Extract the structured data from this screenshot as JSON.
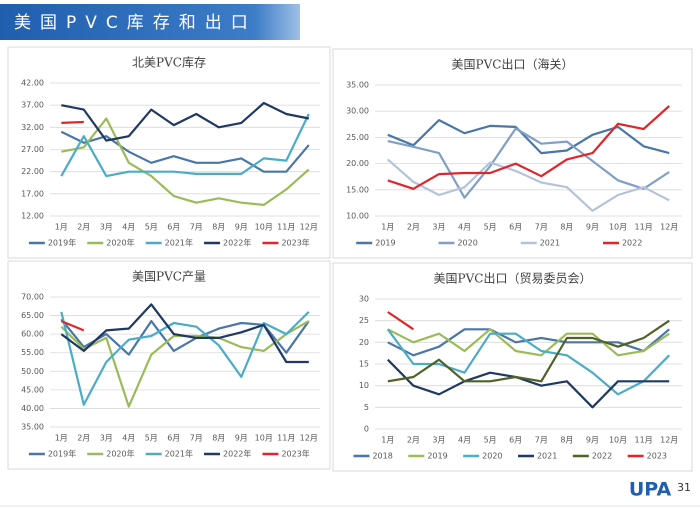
{
  "header": {
    "title": "美国PVC库存和出口"
  },
  "page_number": "31",
  "logo_text": "UPA",
  "chart_data": [
    {
      "type": "line",
      "title": "北美PVC库存",
      "categories": [
        "1月",
        "2月",
        "3月",
        "4月",
        "5月",
        "6月",
        "7月",
        "8月",
        "9月",
        "10月",
        "11月",
        "12月"
      ],
      "ylim": [
        12,
        42
      ],
      "yticks": [
        {
          "value": 12,
          "label": "12.00"
        },
        {
          "value": 17,
          "label": "17.00"
        },
        {
          "value": 22,
          "label": "22.00"
        },
        {
          "value": 27,
          "label": "27.00"
        },
        {
          "value": 32,
          "label": "32.00"
        },
        {
          "value": 37,
          "label": "37.00"
        },
        {
          "value": 42,
          "label": "42.00"
        }
      ],
      "grid": true,
      "series": [
        {
          "name": "2019年",
          "color": "#4a76a8",
          "values": [
            31,
            28.5,
            30,
            26.5,
            24,
            25.5,
            24,
            24,
            25,
            22,
            22,
            28
          ]
        },
        {
          "name": "2020年",
          "color": "#9bbb59",
          "values": [
            26.5,
            27.5,
            34,
            24,
            21,
            16.5,
            15,
            16,
            15,
            14.5,
            18,
            22.5
          ]
        },
        {
          "name": "2021年",
          "color": "#4bacc6",
          "values": [
            21,
            30,
            21,
            22,
            22,
            22,
            21.5,
            21.5,
            21.5,
            25,
            24.5,
            35
          ]
        },
        {
          "name": "2022年",
          "color": "#1f3864",
          "values": [
            37,
            36,
            29,
            30,
            36,
            32.5,
            35,
            32,
            33,
            37.5,
            35,
            34
          ]
        },
        {
          "name": "2023年",
          "color": "#e0262b",
          "values": [
            33,
            33.2,
            null,
            null,
            null,
            null,
            null,
            null,
            null,
            null,
            null,
            null
          ]
        }
      ]
    },
    {
      "type": "line",
      "title": "美国PVC出口（海关）",
      "categories": [
        "1月",
        "2月",
        "3月",
        "4月",
        "5月",
        "6月",
        "7月",
        "8月",
        "9月",
        "10月",
        "11月",
        "12月"
      ],
      "ylim": [
        10,
        35
      ],
      "yticks": [
        {
          "value": 10,
          "label": "10.00"
        },
        {
          "value": 15,
          "label": "15.00"
        },
        {
          "value": 20,
          "label": "20.00"
        },
        {
          "value": 25,
          "label": "25.00"
        },
        {
          "value": 30,
          "label": "30.00"
        },
        {
          "value": 35,
          "label": "35.00"
        }
      ],
      "grid": true,
      "series": [
        {
          "name": "2019",
          "color": "#4a76a8",
          "values": [
            25.5,
            23.5,
            28.3,
            25.8,
            27.2,
            27,
            22,
            22.5,
            25.5,
            27,
            23.3,
            22
          ]
        },
        {
          "name": "2020",
          "color": "#7f9fc6",
          "values": [
            24.3,
            23.2,
            22,
            13.5,
            19.5,
            26.7,
            23.8,
            24.2,
            20.5,
            16.8,
            15.2,
            18.4
          ]
        },
        {
          "name": "2021",
          "color": "#b4c3da",
          "values": [
            20.8,
            16.5,
            14,
            15.5,
            20.2,
            18.6,
            16.4,
            15.5,
            11,
            14,
            15.5,
            13
          ]
        },
        {
          "name": "2022",
          "color": "#e0262b",
          "values": [
            16.8,
            15.2,
            18,
            18.2,
            18.2,
            20,
            17.6,
            20.8,
            22,
            27.6,
            26.6,
            31
          ]
        }
      ]
    },
    {
      "type": "line",
      "title": "美国PVC产量",
      "categories": [
        "1月",
        "2月",
        "3月",
        "4月",
        "5月",
        "6月",
        "7月",
        "8月",
        "9月",
        "10月",
        "11月",
        "12月"
      ],
      "ylim": [
        35,
        70
      ],
      "yticks": [
        {
          "value": 35,
          "label": "35.00"
        },
        {
          "value": 40,
          "label": "40.00"
        },
        {
          "value": 45,
          "label": "45.00"
        },
        {
          "value": 50,
          "label": "50.00"
        },
        {
          "value": 55,
          "label": "55.00"
        },
        {
          "value": 60,
          "label": "60.00"
        },
        {
          "value": 65,
          "label": "65.00"
        },
        {
          "value": 70,
          "label": "70.00"
        }
      ],
      "grid": true,
      "series": [
        {
          "name": "2019年",
          "color": "#4a76a8",
          "values": [
            64,
            56.5,
            60,
            54.5,
            63.5,
            55.5,
            59,
            61.5,
            63,
            62.5,
            55,
            63.5
          ]
        },
        {
          "name": "2020年",
          "color": "#9bbb59",
          "values": [
            62,
            56,
            59,
            40.5,
            54.5,
            59.5,
            59.5,
            59,
            56.5,
            55.5,
            60,
            63.5
          ]
        },
        {
          "name": "2021年",
          "color": "#4bacc6",
          "values": [
            66,
            41,
            52.5,
            58.5,
            59.5,
            63,
            62,
            57,
            48.5,
            63,
            60,
            66
          ]
        },
        {
          "name": "2022年",
          "color": "#1f3864",
          "values": [
            60,
            55.5,
            61,
            61.5,
            68,
            60,
            59,
            59,
            60.5,
            62.5,
            52.5,
            52.5
          ]
        },
        {
          "name": "2023年",
          "color": "#e0262b",
          "values": [
            63.5,
            61,
            null,
            null,
            null,
            null,
            null,
            null,
            null,
            null,
            null,
            null
          ]
        }
      ]
    },
    {
      "type": "line",
      "title": "美国PVC出口（贸易委员会）",
      "categories": [
        "1月",
        "2月",
        "3月",
        "4月",
        "5月",
        "6月",
        "7月",
        "8月",
        "9月",
        "10月",
        "11月",
        "12月"
      ],
      "ylim": [
        0,
        30
      ],
      "yticks": [
        0,
        5,
        10,
        15,
        20,
        25,
        30
      ],
      "grid": true,
      "series": [
        {
          "name": "2018",
          "color": "#4a76a8",
          "values": [
            20,
            17,
            19,
            23,
            23,
            20,
            21,
            20,
            20,
            20,
            18,
            23
          ]
        },
        {
          "name": "2019",
          "color": "#9bbb59",
          "values": [
            23,
            20,
            22,
            18,
            23,
            18,
            17,
            22,
            22,
            17,
            18,
            22
          ]
        },
        {
          "name": "2020",
          "color": "#4bacc6",
          "values": [
            23,
            15,
            15,
            13,
            22,
            22,
            18,
            17,
            13,
            8,
            11,
            17
          ]
        },
        {
          "name": "2021",
          "color": "#1f3864",
          "values": [
            16,
            10,
            8,
            11,
            13,
            12,
            10,
            11,
            5,
            11,
            11,
            11
          ]
        },
        {
          "name": "2022",
          "color": "#4f6228",
          "values": [
            11,
            12,
            16,
            11,
            11,
            12,
            11,
            21,
            21,
            19,
            21,
            25
          ]
        },
        {
          "name": "2023",
          "color": "#e0262b",
          "values": [
            27,
            23,
            null,
            null,
            null,
            null,
            null,
            null,
            null,
            null,
            null,
            null
          ]
        }
      ]
    }
  ]
}
